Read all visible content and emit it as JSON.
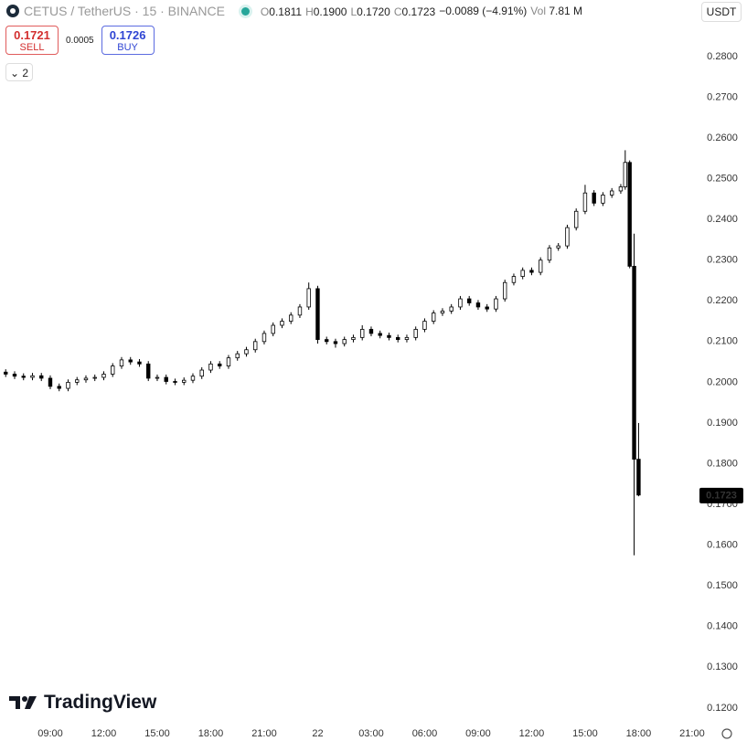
{
  "header": {
    "symbol": "CETUS / TetherUS · 15 · BINANCE",
    "ohlc": [
      {
        "label": "O",
        "value": "0.1811"
      },
      {
        "label": "H",
        "value": "0.1900"
      },
      {
        "label": "L",
        "value": "0.1720"
      },
      {
        "label": "C",
        "value": "0.1723"
      }
    ],
    "change": "−0.0089 (−4.91%)",
    "volume": {
      "label": "Vol",
      "value": "7.81 M"
    }
  },
  "trade": {
    "sell_price": "0.1721",
    "sell_label": "SELL",
    "spread": "0.0005",
    "buy_price": "0.1726",
    "buy_label": "BUY"
  },
  "indicators_toggle": "2",
  "currency": "USDT",
  "brand": "TradingView",
  "chart_data": {
    "type": "candlestick",
    "x": [
      6.5,
      7,
      7.5,
      8,
      8.5,
      9,
      9.5,
      10,
      10.5,
      11,
      11.5,
      12,
      12.5,
      13,
      13.5,
      14,
      14.5,
      15,
      15.5,
      16,
      16.5,
      17,
      17.5,
      18,
      18.5,
      19,
      19.5,
      20,
      20.5,
      21,
      21.5,
      22,
      22.5,
      23,
      23.5,
      24,
      24.5,
      25,
      25.5,
      26,
      26.5,
      27,
      27.5,
      28,
      28.5,
      29,
      29.5,
      30,
      30.5,
      31,
      31.5,
      32,
      32.5,
      33,
      33.5,
      34,
      34.5,
      35,
      35.5,
      36,
      36.5,
      37,
      37.5,
      38,
      38.5,
      39,
      39.5,
      40,
      40.5,
      41,
      41.25,
      41.5,
      41.75,
      42
    ],
    "open": [
      0.2025,
      0.202,
      0.2015,
      0.2012,
      0.2016,
      0.201,
      0.199,
      0.1985,
      0.2,
      0.2006,
      0.201,
      0.2012,
      0.202,
      0.204,
      0.2055,
      0.205,
      0.2045,
      0.201,
      0.2012,
      0.2002,
      0.2,
      0.2005,
      0.2015,
      0.203,
      0.2045,
      0.204,
      0.206,
      0.207,
      0.208,
      0.21,
      0.212,
      0.214,
      0.215,
      0.2165,
      0.2185,
      0.223,
      0.2105,
      0.21,
      0.2095,
      0.2105,
      0.211,
      0.213,
      0.212,
      0.2115,
      0.211,
      0.2105,
      0.211,
      0.213,
      0.215,
      0.217,
      0.2175,
      0.2185,
      0.2205,
      0.2195,
      0.2185,
      0.218,
      0.2205,
      0.2245,
      0.226,
      0.2275,
      0.227,
      0.23,
      0.233,
      0.2335,
      0.238,
      0.242,
      0.2465,
      0.244,
      0.246,
      0.247,
      0.248,
      0.254,
      0.2285,
      0.1811
    ],
    "high": [
      0.2032,
      0.2027,
      0.2022,
      0.2023,
      0.2023,
      0.2017,
      0.1997,
      0.2007,
      0.2013,
      0.2017,
      0.2019,
      0.2027,
      0.2047,
      0.2062,
      0.2062,
      0.2057,
      0.2052,
      0.2019,
      0.2019,
      0.2009,
      0.2012,
      0.2022,
      0.2037,
      0.2052,
      0.2052,
      0.2067,
      0.2077,
      0.2087,
      0.2107,
      0.2127,
      0.2147,
      0.2157,
      0.2172,
      0.2192,
      0.2245,
      0.2237,
      0.2112,
      0.2107,
      0.2112,
      0.2117,
      0.214,
      0.2137,
      0.2127,
      0.2122,
      0.2117,
      0.2117,
      0.2137,
      0.2157,
      0.2177,
      0.2182,
      0.2192,
      0.2212,
      0.2212,
      0.2202,
      0.2192,
      0.2212,
      0.2252,
      0.2267,
      0.2282,
      0.2282,
      0.2307,
      0.2337,
      0.2342,
      0.2387,
      0.2427,
      0.2485,
      0.2472,
      0.2467,
      0.2477,
      0.2487,
      0.257,
      0.2545,
      0.2365,
      0.19
    ],
    "low": [
      0.2013,
      0.2008,
      0.2005,
      0.2005,
      0.2003,
      0.1983,
      0.1978,
      0.1978,
      0.1993,
      0.1999,
      0.2003,
      0.2005,
      0.2013,
      0.2033,
      0.2043,
      0.2038,
      0.2003,
      0.2003,
      0.1995,
      0.1993,
      0.1993,
      0.1998,
      0.2008,
      0.2023,
      0.2033,
      0.2033,
      0.2053,
      0.2063,
      0.2073,
      0.2093,
      0.2113,
      0.2133,
      0.2143,
      0.2158,
      0.2178,
      0.2095,
      0.2093,
      0.2085,
      0.2088,
      0.2098,
      0.2103,
      0.2113,
      0.2108,
      0.2103,
      0.2098,
      0.2098,
      0.2103,
      0.2123,
      0.2143,
      0.2163,
      0.2168,
      0.2178,
      0.2188,
      0.2178,
      0.2173,
      0.2173,
      0.2198,
      0.2238,
      0.2253,
      0.2263,
      0.2263,
      0.2293,
      0.2323,
      0.2328,
      0.2373,
      0.2413,
      0.2433,
      0.2433,
      0.2453,
      0.2463,
      0.2473,
      0.228,
      0.1575,
      0.172
    ],
    "close": [
      0.202,
      0.2015,
      0.2012,
      0.2016,
      0.201,
      0.199,
      0.1985,
      0.2,
      0.2006,
      0.201,
      0.2012,
      0.202,
      0.204,
      0.2055,
      0.205,
      0.2045,
      0.201,
      0.2012,
      0.2002,
      0.2,
      0.2005,
      0.2015,
      0.203,
      0.2045,
      0.204,
      0.206,
      0.207,
      0.208,
      0.21,
      0.212,
      0.214,
      0.215,
      0.2165,
      0.2185,
      0.223,
      0.2105,
      0.21,
      0.2095,
      0.2105,
      0.211,
      0.213,
      0.212,
      0.2115,
      0.211,
      0.2105,
      0.211,
      0.213,
      0.215,
      0.217,
      0.2175,
      0.2185,
      0.2205,
      0.2195,
      0.2185,
      0.218,
      0.2205,
      0.2245,
      0.226,
      0.2275,
      0.227,
      0.23,
      0.233,
      0.2335,
      0.238,
      0.242,
      0.2465,
      0.244,
      0.246,
      0.247,
      0.248,
      0.254,
      0.2285,
      0.1811,
      0.1723
    ],
    "up_color": "#ffffff",
    "down_color": "#000000",
    "wick_color": "#000000",
    "grid": false,
    "xlim": [
      6.18,
      45.26
    ],
    "ylim": [
      0.1166,
      0.2939
    ],
    "xticks": [
      {
        "value": 9,
        "label": "09:00"
      },
      {
        "value": 12,
        "label": "12:00"
      },
      {
        "value": 15,
        "label": "15:00"
      },
      {
        "value": 18,
        "label": "18:00"
      },
      {
        "value": 21,
        "label": "21:00"
      },
      {
        "value": 24,
        "label": "22"
      },
      {
        "value": 27,
        "label": "03:00"
      },
      {
        "value": 30,
        "label": "06:00"
      },
      {
        "value": 33,
        "label": "09:00"
      },
      {
        "value": 36,
        "label": "12:00"
      },
      {
        "value": 39,
        "label": "15:00"
      },
      {
        "value": 42,
        "label": "18:00"
      },
      {
        "value": 45,
        "label": "21:00"
      }
    ],
    "yticks": [
      {
        "value": 0.28,
        "label": "0.2800"
      },
      {
        "value": 0.27,
        "label": "0.2700"
      },
      {
        "value": 0.26,
        "label": "0.2600"
      },
      {
        "value": 0.25,
        "label": "0.2500"
      },
      {
        "value": 0.24,
        "label": "0.2400"
      },
      {
        "value": 0.23,
        "label": "0.2300"
      },
      {
        "value": 0.22,
        "label": "0.2200"
      },
      {
        "value": 0.21,
        "label": "0.2100"
      },
      {
        "value": 0.2,
        "label": "0.2000"
      },
      {
        "value": 0.19,
        "label": "0.1900"
      },
      {
        "value": 0.18,
        "label": "0.1800"
      },
      {
        "value": 0.17,
        "label": "0.1700"
      },
      {
        "value": 0.16,
        "label": "0.1600"
      },
      {
        "value": 0.15,
        "label": "0.1500"
      },
      {
        "value": 0.14,
        "label": "0.1400"
      },
      {
        "value": 0.13,
        "label": "0.1300"
      },
      {
        "value": 0.12,
        "label": "0.1200"
      }
    ]
  }
}
